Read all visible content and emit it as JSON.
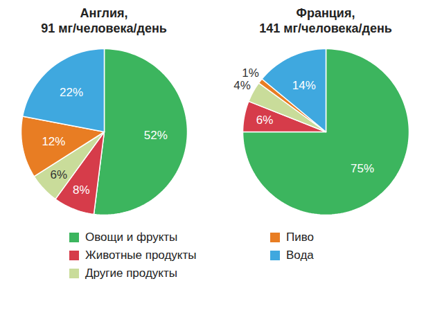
{
  "chart_data": [
    {
      "type": "pie",
      "title": "Англия, 91 мг/человека/день",
      "categories": [
        "Овощи и фрукты",
        "Животные продукты",
        "Другие продукты",
        "Пиво",
        "Вода"
      ],
      "values": [
        52,
        8,
        6,
        12,
        22
      ],
      "value_labels": [
        "52%",
        "8%",
        "6%",
        "12%",
        "22%"
      ],
      "colors": [
        "#3cb55e",
        "#d63c4a",
        "#c9dc9a",
        "#e87d23",
        "#3fa8df"
      ],
      "data_labels": true,
      "legend": "bottom"
    },
    {
      "type": "pie",
      "title": "Франция, 141 мг/человека/день",
      "categories": [
        "Овощи и фрукты",
        "Животные продукты",
        "Другие продукты",
        "Пиво",
        "Вода"
      ],
      "values": [
        75,
        6,
        4,
        1,
        14
      ],
      "value_labels": [
        "75%",
        "6%",
        "4%",
        "1%",
        "14%"
      ],
      "colors": [
        "#3cb55e",
        "#d63c4a",
        "#c9dc9a",
        "#e87d23",
        "#3fa8df"
      ],
      "data_labels": true,
      "legend": "bottom"
    }
  ]
}
